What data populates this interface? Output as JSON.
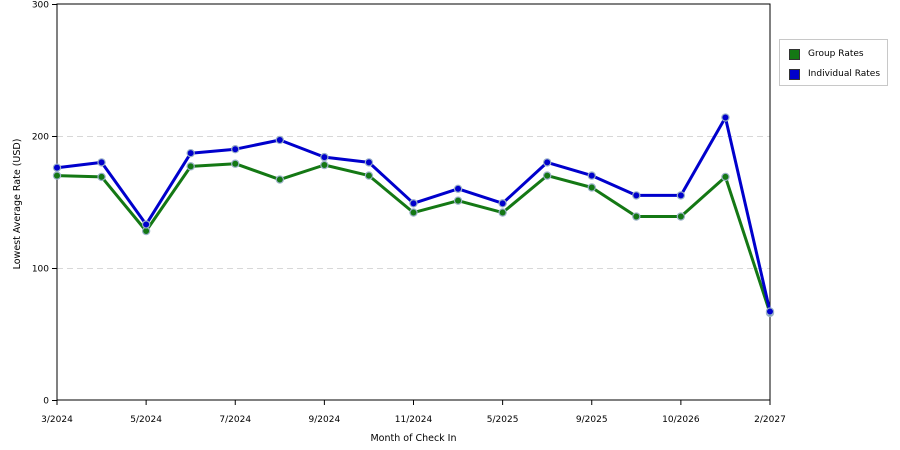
{
  "chart_data": {
    "type": "line",
    "xlabel": "Month of Check In",
    "ylabel": "Lowest Average Rate (USD)",
    "ylim": [
      0,
      300
    ],
    "yticks": [
      0,
      100,
      200,
      300
    ],
    "x_tick_labels": [
      "3/2024",
      "5/2024",
      "7/2024",
      "9/2024",
      "11/2024",
      "5/2025",
      "9/2025",
      "10/2026",
      "2/2027"
    ],
    "grid": "horizontal dashed",
    "legend_placement": "right",
    "series": [
      {
        "name": "Group Rates",
        "color": "#147814",
        "values": [
          170,
          169,
          128,
          177,
          179,
          167,
          178,
          170,
          142,
          151,
          142,
          170,
          161,
          139,
          139,
          169,
          66
        ]
      },
      {
        "name": "Individual Rates",
        "color": "#0000cc",
        "values": [
          176,
          180,
          133,
          187,
          190,
          197,
          184,
          180,
          149,
          160,
          149,
          180,
          170,
          155,
          155,
          214,
          67
        ]
      }
    ]
  }
}
